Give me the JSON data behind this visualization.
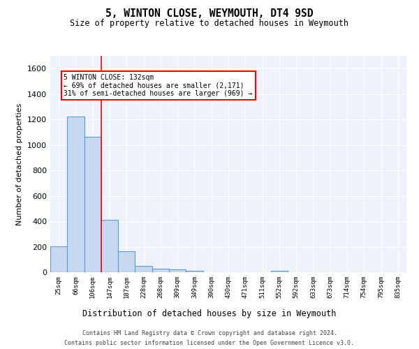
{
  "title1": "5, WINTON CLOSE, WEYMOUTH, DT4 9SD",
  "title2": "Size of property relative to detached houses in Weymouth",
  "xlabel": "Distribution of detached houses by size in Weymouth",
  "ylabel": "Number of detached properties",
  "bin_labels": [
    "25sqm",
    "66sqm",
    "106sqm",
    "147sqm",
    "187sqm",
    "228sqm",
    "268sqm",
    "309sqm",
    "349sqm",
    "390sqm",
    "430sqm",
    "471sqm",
    "511sqm",
    "552sqm",
    "592sqm",
    "633sqm",
    "673sqm",
    "714sqm",
    "754sqm",
    "795sqm",
    "835sqm"
  ],
  "bar_values": [
    205,
    1225,
    1065,
    410,
    165,
    48,
    28,
    20,
    12,
    0,
    0,
    0,
    0,
    13,
    0,
    0,
    0,
    0,
    0,
    0,
    0
  ],
  "bar_color": "#c7d9f0",
  "bar_edge_color": "#5b9bd5",
  "bg_color": "#eef2fb",
  "grid_color": "#ffffff",
  "red_line_x": 2.5,
  "annotation_line1": "5 WINTON CLOSE: 132sqm",
  "annotation_line2": "← 69% of detached houses are smaller (2,171)",
  "annotation_line3": "31% of semi-detached houses are larger (969) →",
  "ylim": [
    0,
    1700
  ],
  "yticks": [
    0,
    200,
    400,
    600,
    800,
    1000,
    1200,
    1400,
    1600
  ],
  "footer1": "Contains HM Land Registry data © Crown copyright and database right 2024.",
  "footer2": "Contains public sector information licensed under the Open Government Licence v3.0."
}
